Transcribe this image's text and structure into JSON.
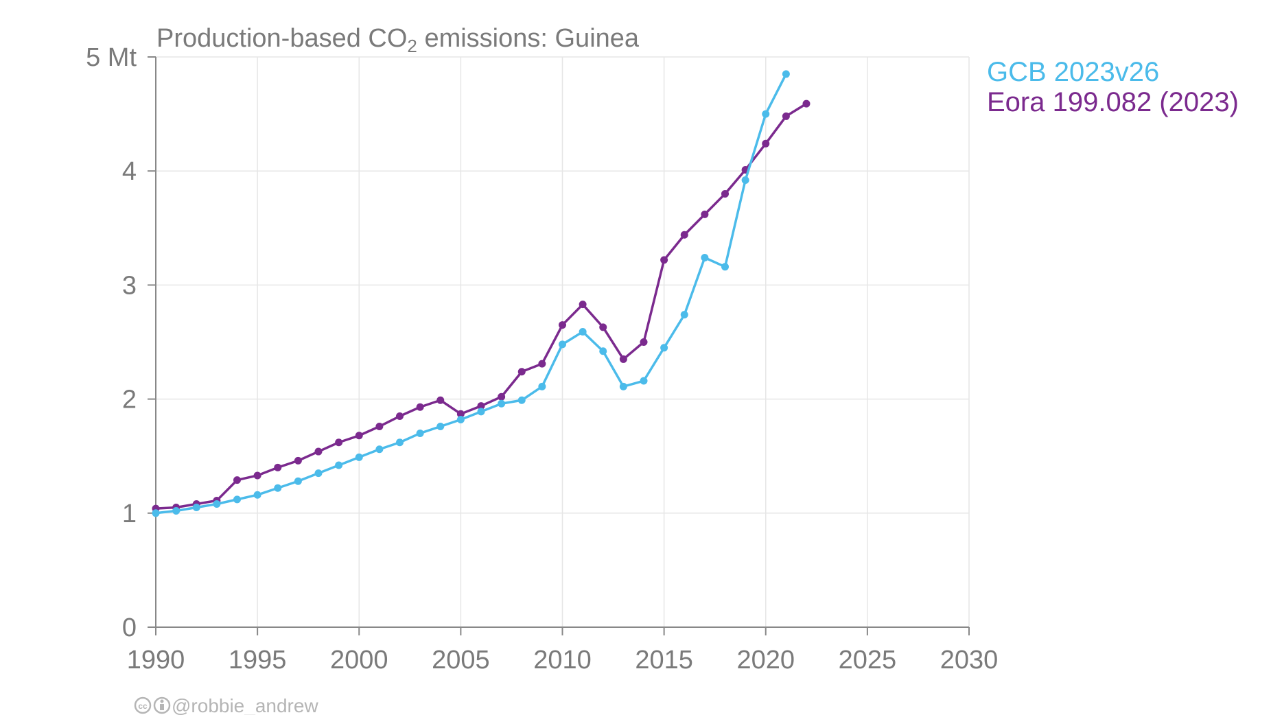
{
  "chart_data": {
    "type": "line",
    "title_main": "Production-based CO",
    "title_sub": "2",
    "title_rest": " emissions: Guinea",
    "y_unit_label": "5 Mt",
    "xlim": [
      1990,
      2030
    ],
    "ylim": [
      0,
      5
    ],
    "x_ticks": [
      1990,
      1995,
      2000,
      2005,
      2010,
      2015,
      2020,
      2025,
      2030
    ],
    "y_ticks": [
      0,
      1,
      2,
      3,
      4,
      5
    ],
    "y_tick_labels": [
      "0",
      "1",
      "2",
      "3",
      "4",
      "5 Mt"
    ],
    "grid": true,
    "legend_position": "right",
    "series": [
      {
        "name": "GCB 2023v26",
        "color": "#4bbbea",
        "x": [
          1990,
          1991,
          1992,
          1993,
          1994,
          1995,
          1996,
          1997,
          1998,
          1999,
          2000,
          2001,
          2002,
          2003,
          2004,
          2005,
          2006,
          2007,
          2008,
          2009,
          2010,
          2011,
          2012,
          2013,
          2014,
          2015,
          2016,
          2017,
          2018,
          2019,
          2020,
          2021
        ],
        "values": [
          1.0,
          1.02,
          1.05,
          1.08,
          1.12,
          1.16,
          1.22,
          1.28,
          1.35,
          1.42,
          1.49,
          1.56,
          1.62,
          1.7,
          1.76,
          1.82,
          1.89,
          1.96,
          1.99,
          2.11,
          2.48,
          2.59,
          2.42,
          2.11,
          2.16,
          2.45,
          2.74,
          3.24,
          3.16,
          3.92,
          4.5,
          4.85
        ]
      },
      {
        "name": "Eora 199.082 (2023)",
        "color": "#7b2a8e",
        "x": [
          1990,
          1991,
          1992,
          1993,
          1994,
          1995,
          1996,
          1997,
          1998,
          1999,
          2000,
          2001,
          2002,
          2003,
          2004,
          2005,
          2006,
          2007,
          2008,
          2009,
          2010,
          2011,
          2012,
          2013,
          2014,
          2015,
          2016,
          2017,
          2018,
          2019,
          2020,
          2021,
          2022
        ],
        "values": [
          1.04,
          1.05,
          1.08,
          1.11,
          1.29,
          1.33,
          1.4,
          1.46,
          1.54,
          1.62,
          1.68,
          1.76,
          1.85,
          1.93,
          1.99,
          1.87,
          1.94,
          2.02,
          2.24,
          2.31,
          2.65,
          2.83,
          2.63,
          2.35,
          2.5,
          3.22,
          3.44,
          3.62,
          3.8,
          4.01,
          4.24,
          4.48,
          4.59
        ]
      }
    ]
  },
  "credit": "@robbie_andrew",
  "credit_icons": [
    "cc-icon",
    "attribution-icon"
  ]
}
